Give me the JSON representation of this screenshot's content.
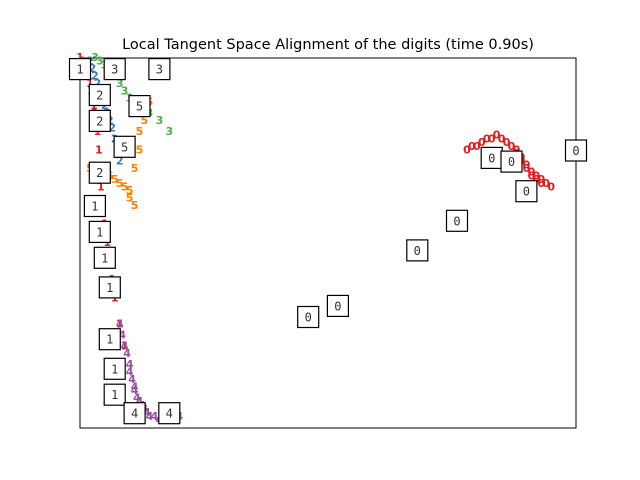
{
  "chart_data": {
    "type": "scatter",
    "title": "Local Tangent Space Alignment of the digits (time 0.90s)",
    "xlabel": "",
    "ylabel": "",
    "axes_visible": false,
    "grid": false,
    "colors": {
      "0": "#e41a1c",
      "1": "#e41a1c",
      "2": "#377eb8",
      "3": "#4daf4a",
      "4": "#984ea3",
      "5": "#ff7f00"
    },
    "series": [
      {
        "digit": "0",
        "x": [
          0.78,
          0.79,
          0.8,
          0.81,
          0.82,
          0.83,
          0.84,
          0.85,
          0.86,
          0.87,
          0.88,
          0.88,
          0.89,
          0.89,
          0.9,
          0.9,
          0.91,
          0.91,
          0.92,
          0.92,
          0.93,
          0.93,
          0.94,
          0.95
        ],
        "y": [
          0.25,
          0.24,
          0.24,
          0.23,
          0.22,
          0.22,
          0.21,
          0.22,
          0.23,
          0.24,
          0.25,
          0.26,
          0.27,
          0.28,
          0.29,
          0.3,
          0.31,
          0.32,
          0.32,
          0.33,
          0.33,
          0.34,
          0.34,
          0.35
        ]
      },
      {
        "digit": "1",
        "x": [
          0.0,
          0.005,
          0.01,
          0.012,
          0.015,
          0.018,
          0.02,
          0.022,
          0.025,
          0.028,
          0.03,
          0.032,
          0.035,
          0.038,
          0.04,
          0.042,
          0.045,
          0.05,
          0.055,
          0.06,
          0.065,
          0.07,
          0.08,
          0.09
        ],
        "y": [
          0.0,
          0.01,
          0.02,
          0.03,
          0.04,
          0.05,
          0.07,
          0.09,
          0.11,
          0.13,
          0.15,
          0.17,
          0.2,
          0.25,
          0.3,
          0.35,
          0.4,
          0.45,
          0.5,
          0.55,
          0.6,
          0.65,
          0.72,
          0.78
        ]
      },
      {
        "digit": "2",
        "x": [
          0.02,
          0.025,
          0.03,
          0.035,
          0.04,
          0.045,
          0.05,
          0.055,
          0.06,
          0.065,
          0.07,
          0.075,
          0.08
        ],
        "y": [
          0.01,
          0.03,
          0.05,
          0.07,
          0.09,
          0.11,
          0.13,
          0.15,
          0.17,
          0.19,
          0.22,
          0.25,
          0.28
        ]
      },
      {
        "digit": "3",
        "x": [
          0.03,
          0.04,
          0.05,
          0.06,
          0.07,
          0.08,
          0.09,
          0.1,
          0.12,
          0.14,
          0.16,
          0.18
        ],
        "y": [
          0.0,
          0.01,
          0.02,
          0.03,
          0.05,
          0.07,
          0.09,
          0.11,
          0.13,
          0.15,
          0.17,
          0.2
        ]
      },
      {
        "digit": "4",
        "x": [
          0.08,
          0.085,
          0.09,
          0.095,
          0.1,
          0.1,
          0.105,
          0.11,
          0.11,
          0.115,
          0.12,
          0.125,
          0.13,
          0.135,
          0.14,
          0.15,
          0.16,
          0.17,
          0.18,
          0.19,
          0.2
        ],
        "y": [
          0.72,
          0.75,
          0.78,
          0.8,
          0.83,
          0.85,
          0.87,
          0.89,
          0.9,
          0.92,
          0.93,
          0.94,
          0.95,
          0.96,
          0.97,
          0.97,
          0.98,
          0.98,
          0.98,
          0.97,
          0.97
        ]
      },
      {
        "digit": "5",
        "x": [
          0.02,
          0.04,
          0.06,
          0.07,
          0.08,
          0.09,
          0.1,
          0.1,
          0.11,
          0.11,
          0.12,
          0.12,
          0.13,
          0.13,
          0.14
        ],
        "y": [
          0.3,
          0.31,
          0.32,
          0.33,
          0.34,
          0.35,
          0.36,
          0.38,
          0.4,
          0.3,
          0.25,
          0.2,
          0.17,
          0.15,
          0.12
        ]
      }
    ],
    "thumbnails": [
      {
        "digit": "1",
        "x": 0.0,
        "y": 0.03
      },
      {
        "digit": "3",
        "x": 0.07,
        "y": 0.03
      },
      {
        "digit": "3",
        "x": 0.16,
        "y": 0.03
      },
      {
        "digit": "2",
        "x": 0.04,
        "y": 0.1
      },
      {
        "digit": "5",
        "x": 0.12,
        "y": 0.13
      },
      {
        "digit": "2",
        "x": 0.04,
        "y": 0.17
      },
      {
        "digit": "5",
        "x": 0.09,
        "y": 0.24
      },
      {
        "digit": "2",
        "x": 0.04,
        "y": 0.31
      },
      {
        "digit": "1",
        "x": 0.03,
        "y": 0.4
      },
      {
        "digit": "1",
        "x": 0.04,
        "y": 0.47
      },
      {
        "digit": "1",
        "x": 0.05,
        "y": 0.54
      },
      {
        "digit": "1",
        "x": 0.06,
        "y": 0.62
      },
      {
        "digit": "1",
        "x": 0.06,
        "y": 0.76
      },
      {
        "digit": "1",
        "x": 0.07,
        "y": 0.84
      },
      {
        "digit": "1",
        "x": 0.07,
        "y": 0.91
      },
      {
        "digit": "4",
        "x": 0.11,
        "y": 0.96
      },
      {
        "digit": "4",
        "x": 0.18,
        "y": 0.96
      },
      {
        "digit": "0",
        "x": 0.46,
        "y": 0.7
      },
      {
        "digit": "0",
        "x": 0.52,
        "y": 0.67
      },
      {
        "digit": "0",
        "x": 0.68,
        "y": 0.52
      },
      {
        "digit": "0",
        "x": 0.76,
        "y": 0.44
      },
      {
        "digit": "0",
        "x": 0.83,
        "y": 0.27
      },
      {
        "digit": "0",
        "x": 0.9,
        "y": 0.36
      },
      {
        "digit": "0",
        "x": 0.87,
        "y": 0.28
      },
      {
        "digit": "0",
        "x": 1.0,
        "y": 0.25
      }
    ]
  }
}
